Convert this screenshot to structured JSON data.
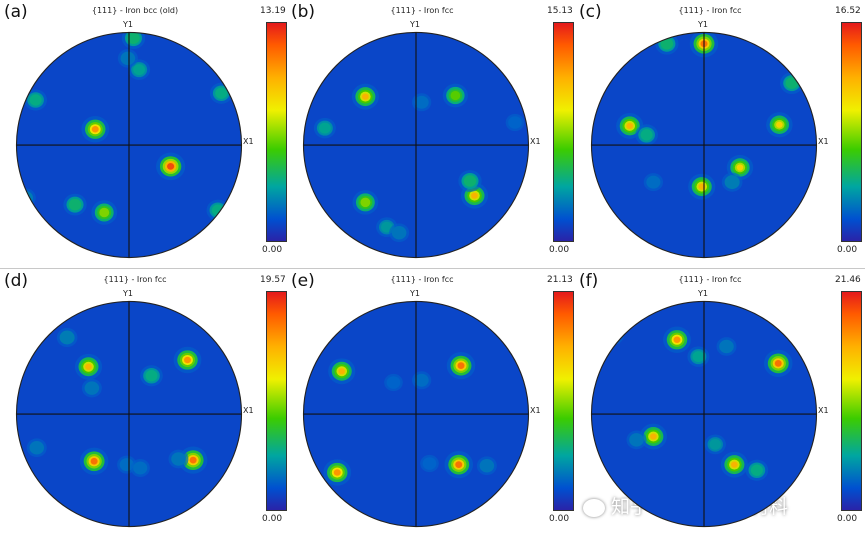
{
  "panels": [
    {
      "label": "(a)",
      "title": "{111} - Iron bcc (old)",
      "max": "13.19",
      "min": "0.00",
      "x_axis": "X1",
      "y_axis": "Y1",
      "spots": [
        [
          0.04,
          -0.95,
          0.55
        ],
        [
          0.09,
          -0.67,
          0.45
        ],
        [
          -0.83,
          -0.4,
          0.5
        ],
        [
          0.82,
          -0.46,
          0.5
        ],
        [
          -0.3,
          -0.14,
          0.9
        ],
        [
          0.37,
          0.19,
          1.0
        ],
        [
          -0.48,
          0.53,
          0.55
        ],
        [
          -0.22,
          0.6,
          0.75
        ],
        [
          -0.92,
          0.47,
          0.35
        ],
        [
          0.79,
          0.58,
          0.5
        ],
        [
          -0.01,
          -0.77,
          0.3
        ],
        [
          0.99,
          -0.52,
          0.4
        ]
      ]
    },
    {
      "label": "(b)",
      "title": "{111} - Iron fcc",
      "max": "15.13",
      "min": "0.00",
      "x_axis": "X1",
      "y_axis": "Y1",
      "spots": [
        [
          -0.45,
          -0.43,
          0.85
        ],
        [
          0.35,
          -0.44,
          0.7
        ],
        [
          -0.81,
          -0.15,
          0.45
        ],
        [
          0.52,
          0.45,
          0.85
        ],
        [
          -0.45,
          0.51,
          0.75
        ],
        [
          0.48,
          0.32,
          0.55
        ],
        [
          -0.26,
          0.73,
          0.4
        ],
        [
          -0.15,
          0.78,
          0.3
        ],
        [
          0.05,
          -0.38,
          0.25
        ],
        [
          0.88,
          -0.2,
          0.2
        ]
      ]
    },
    {
      "label": "(c)",
      "title": "{111} - Iron fcc",
      "max": "16.52",
      "min": "0.00",
      "x_axis": "X1",
      "y_axis": "Y1",
      "spots": [
        [
          0.0,
          -0.9,
          0.95
        ],
        [
          -0.33,
          -0.9,
          0.55
        ],
        [
          0.78,
          -0.55,
          0.55
        ],
        [
          -0.66,
          -0.17,
          0.85
        ],
        [
          -0.51,
          -0.09,
          0.5
        ],
        [
          0.67,
          -0.18,
          0.8
        ],
        [
          0.32,
          0.2,
          0.8
        ],
        [
          -0.02,
          0.37,
          0.85
        ],
        [
          -0.45,
          0.33,
          0.25
        ],
        [
          0.25,
          0.33,
          0.35
        ],
        [
          0.6,
          0.91,
          0.35
        ]
      ]
    },
    {
      "label": "(d)",
      "title": "{111} - Iron fcc",
      "max": "19.57",
      "min": "0.00",
      "x_axis": "X1",
      "y_axis": "Y1",
      "spots": [
        [
          -0.36,
          -0.42,
          0.85
        ],
        [
          0.52,
          -0.48,
          0.9
        ],
        [
          0.2,
          -0.34,
          0.5
        ],
        [
          -0.55,
          -0.68,
          0.35
        ],
        [
          -0.33,
          -0.23,
          0.3
        ],
        [
          -0.31,
          0.42,
          0.95
        ],
        [
          0.57,
          0.41,
          0.95
        ],
        [
          -0.82,
          0.3,
          0.3
        ],
        [
          -0.02,
          0.45,
          0.25
        ],
        [
          0.1,
          0.48,
          0.25
        ],
        [
          0.44,
          0.4,
          0.3
        ]
      ]
    },
    {
      "label": "(e)",
      "title": "{111} - Iron fcc",
      "max": "21.13",
      "min": "0.00",
      "x_axis": "X1",
      "y_axis": "Y1",
      "spots": [
        [
          -0.66,
          -0.38,
          0.85
        ],
        [
          0.4,
          -0.43,
          0.95
        ],
        [
          -0.7,
          0.52,
          0.9
        ],
        [
          0.38,
          0.45,
          0.95
        ],
        [
          0.63,
          0.46,
          0.3
        ],
        [
          0.05,
          -0.3,
          0.25
        ],
        [
          -0.2,
          -0.28,
          0.2
        ],
        [
          0.12,
          0.44,
          0.2
        ]
      ]
    },
    {
      "label": "(f)",
      "title": "{111} - Iron fcc",
      "max": "21.46",
      "min": "0.00",
      "x_axis": "X1",
      "y_axis": "Y1",
      "spots": [
        [
          -0.24,
          -0.66,
          0.9
        ],
        [
          0.66,
          -0.45,
          0.95
        ],
        [
          -0.45,
          0.2,
          0.85
        ],
        [
          0.27,
          0.45,
          0.85
        ],
        [
          -0.05,
          -0.51,
          0.45
        ],
        [
          0.1,
          0.27,
          0.4
        ],
        [
          -0.6,
          0.23,
          0.3
        ],
        [
          0.2,
          -0.6,
          0.3
        ],
        [
          -0.8,
          -0.7,
          0.3
        ],
        [
          0.47,
          0.5,
          0.5
        ]
      ]
    }
  ],
  "watermark": "知乎 @中材检测材料"
}
